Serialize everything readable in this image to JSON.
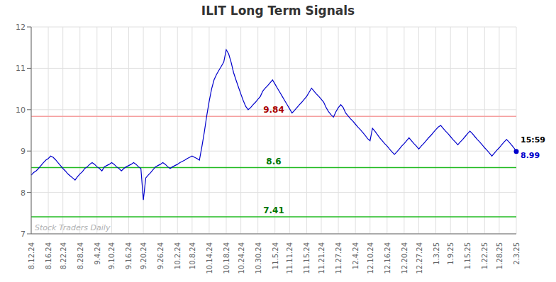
{
  "chart_data": {
    "type": "line",
    "title": "ILIT Long Term Signals",
    "ylim": [
      7.0,
      12.0
    ],
    "yticks": [
      7,
      8,
      9,
      10,
      11,
      12
    ],
    "grid": true,
    "categories": [
      "8.12.24",
      null,
      null,
      null,
      null,
      null,
      null,
      "8.16.24",
      null,
      null,
      null,
      null,
      null,
      "8.22.24",
      null,
      null,
      null,
      null,
      null,
      null,
      "8.28.24",
      null,
      null,
      null,
      null,
      null,
      null,
      "9.4.24",
      null,
      null,
      null,
      null,
      null,
      "9.10.24",
      null,
      null,
      null,
      null,
      null,
      null,
      "9.16.24",
      null,
      null,
      null,
      null,
      null,
      "9.20.24",
      null,
      null,
      null,
      null,
      null,
      null,
      "9.26.24",
      null,
      null,
      null,
      null,
      null,
      null,
      "10.2.24",
      null,
      null,
      null,
      null,
      null,
      "10.8.24",
      null,
      null,
      null,
      null,
      null,
      null,
      "10.14.24",
      null,
      null,
      null,
      null,
      null,
      null,
      "10.18.24",
      null,
      null,
      null,
      null,
      null,
      "10.24.24",
      null,
      null,
      null,
      null,
      null,
      null,
      "10.30.24",
      null,
      null,
      null,
      null,
      null,
      null,
      "11.5.24",
      null,
      null,
      null,
      null,
      null,
      "11.11.24",
      null,
      null,
      null,
      null,
      null,
      null,
      "11.15.24",
      null,
      null,
      null,
      null,
      null,
      "11.21.24",
      null,
      null,
      null,
      null,
      null,
      null,
      "11.27.24",
      null,
      null,
      null,
      null,
      null,
      null,
      "12.4.24",
      null,
      null,
      null,
      null,
      null,
      "12.10.24",
      null,
      null,
      null,
      null,
      null,
      null,
      "12.16.24",
      null,
      null,
      null,
      null,
      null,
      null,
      "12.20.24",
      null,
      null,
      null,
      null,
      null,
      "12.27.24",
      null,
      null,
      null,
      null,
      null,
      null,
      "1.3.25",
      null,
      null,
      null,
      null,
      null,
      "1.9.25",
      null,
      null,
      null,
      null,
      null,
      null,
      "1.15.25",
      null,
      null,
      null,
      null,
      null,
      null,
      "1.22.25",
      null,
      null,
      null,
      null,
      null,
      "1.28.25",
      null,
      null,
      null,
      null,
      null,
      null,
      "2.3.25"
    ],
    "series": [
      {
        "color": "#0000cc",
        "marker": "end",
        "values": [
          8.42,
          8.48,
          8.52,
          8.58,
          8.65,
          8.72,
          8.78,
          8.82,
          8.88,
          8.85,
          8.79,
          8.72,
          8.65,
          8.58,
          8.52,
          8.45,
          8.4,
          8.35,
          8.3,
          8.38,
          8.45,
          8.5,
          8.58,
          8.62,
          8.68,
          8.72,
          8.68,
          8.62,
          8.58,
          8.52,
          8.62,
          8.65,
          8.68,
          8.72,
          8.68,
          8.62,
          8.58,
          8.52,
          8.58,
          8.62,
          8.65,
          8.68,
          8.72,
          8.68,
          8.62,
          8.58,
          7.82,
          8.35,
          8.42,
          8.48,
          8.55,
          8.62,
          8.65,
          8.68,
          8.72,
          8.68,
          8.62,
          8.58,
          8.62,
          8.65,
          8.68,
          8.72,
          8.75,
          8.78,
          8.82,
          8.85,
          8.88,
          8.85,
          8.82,
          8.78,
          9.1,
          9.45,
          9.85,
          10.2,
          10.5,
          10.72,
          10.85,
          10.95,
          11.05,
          11.15,
          11.45,
          11.35,
          11.15,
          10.9,
          10.72,
          10.55,
          10.38,
          10.22,
          10.08,
          10.0,
          10.05,
          10.12,
          10.18,
          10.25,
          10.32,
          10.45,
          10.52,
          10.58,
          10.65,
          10.72,
          10.62,
          10.52,
          10.42,
          10.32,
          10.22,
          10.12,
          10.02,
          9.92,
          9.98,
          10.05,
          10.12,
          10.18,
          10.25,
          10.32,
          10.42,
          10.52,
          10.45,
          10.38,
          10.32,
          10.25,
          10.18,
          10.05,
          9.95,
          9.88,
          9.82,
          9.95,
          10.05,
          10.12,
          10.05,
          9.92,
          9.85,
          9.78,
          9.72,
          9.65,
          9.58,
          9.52,
          9.45,
          9.38,
          9.3,
          9.25,
          9.55,
          9.48,
          9.4,
          9.32,
          9.25,
          9.18,
          9.12,
          9.05,
          8.98,
          8.92,
          8.98,
          9.05,
          9.12,
          9.18,
          9.25,
          9.32,
          9.25,
          9.18,
          9.12,
          9.05,
          9.12,
          9.18,
          9.25,
          9.32,
          9.38,
          9.45,
          9.52,
          9.58,
          9.62,
          9.55,
          9.48,
          9.42,
          9.35,
          9.28,
          9.22,
          9.15,
          9.22,
          9.28,
          9.35,
          9.42,
          9.48,
          9.42,
          9.35,
          9.28,
          9.22,
          9.15,
          9.08,
          9.02,
          8.95,
          8.88,
          8.95,
          9.02,
          9.08,
          9.15,
          9.22,
          9.28,
          9.22,
          9.15,
          9.08,
          8.99
        ]
      }
    ],
    "hlines": [
      {
        "value": 9.84,
        "label": "9.84",
        "color": "#f5a0a0",
        "label_color": "#aa0000"
      },
      {
        "value": 8.6,
        "label": "8.6",
        "color": "#22bb22",
        "label_color": "#007700"
      },
      {
        "value": 7.41,
        "label": "7.41",
        "color": "#22bb22",
        "label_color": "#007700"
      }
    ],
    "annotations": [
      {
        "text": "15:59",
        "color": "#000000"
      },
      {
        "text": "8.99",
        "color": "#0000cc"
      }
    ],
    "watermark": {
      "text": "Stock Traders Daily",
      "color": "#b0b0b0"
    }
  }
}
